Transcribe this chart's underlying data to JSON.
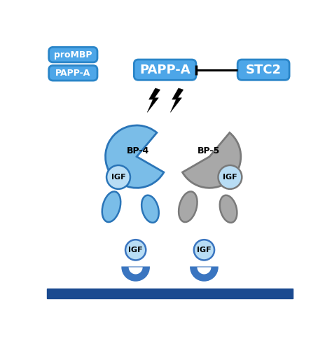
{
  "bg_color": "#ffffff",
  "blue_box_color": "#4da6e8",
  "blue_box_edge": "#2a85c8",
  "igf_circle_color": "#b8ddf5",
  "bp4_fill": "#7abde8",
  "bp5_fill": "#a8a8a8",
  "bp4_edge": "#2a75b8",
  "bp5_edge": "#7a7a7a",
  "receptor_blue": "#3a75c0",
  "membrane_color": "#1a4a90",
  "white": "#ffffff",
  "labels": {
    "proMBP": "proMBP",
    "PAPP_A_left": "PAPP-A",
    "PAPP_A_center": "PAPP-A",
    "STC2": "STC2",
    "BP4": "BP-4",
    "BP5": "BP-5",
    "IGF": "IGF"
  }
}
